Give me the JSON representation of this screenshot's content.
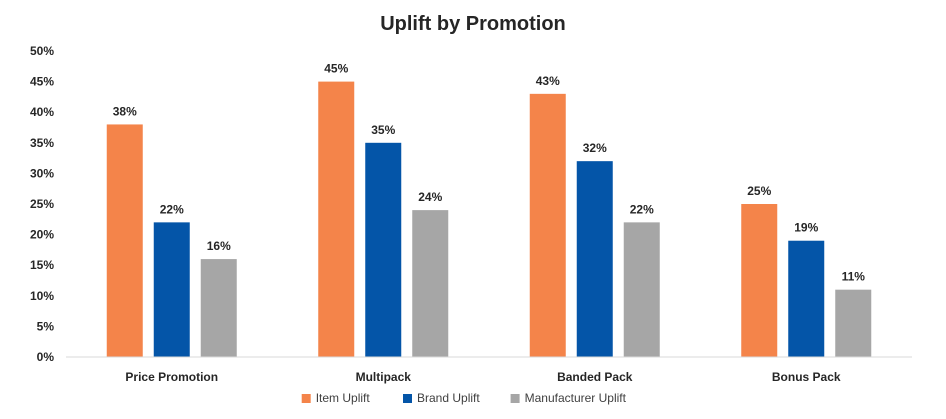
{
  "chart_data": {
    "type": "bar",
    "title": "Uplift by Promotion",
    "xlabel": "",
    "ylabel": "",
    "categories": [
      "Price Promotion",
      "Multipack",
      "Banded Pack",
      "Bonus Pack"
    ],
    "series": [
      {
        "name": "Item Uplift",
        "color": "#F4844A",
        "values": [
          38,
          45,
          43,
          25
        ]
      },
      {
        "name": "Brand Uplift",
        "color": "#0455A8",
        "values": [
          22,
          35,
          32,
          19
        ]
      },
      {
        "name": "Manufacturer Uplift",
        "color": "#A6A6A6",
        "values": [
          16,
          24,
          22,
          11
        ]
      }
    ],
    "ylim": [
      0,
      50
    ],
    "yticks": [
      0,
      5,
      10,
      15,
      20,
      25,
      30,
      35,
      40,
      45,
      50
    ],
    "ytick_labels": [
      "0%",
      "5%",
      "10%",
      "15%",
      "20%",
      "25%",
      "30%",
      "35%",
      "40%",
      "45%",
      "50%"
    ],
    "data_labels": [
      [
        "38%",
        "45%",
        "43%",
        "25%"
      ],
      [
        "22%",
        "35%",
        "32%",
        "19%"
      ],
      [
        "16%",
        "24%",
        "22%",
        "11%"
      ]
    ],
    "grid": false,
    "legend": "bottom"
  }
}
